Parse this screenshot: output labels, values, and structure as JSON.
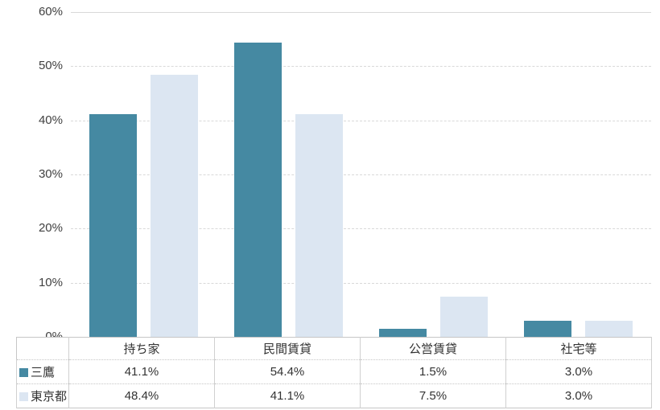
{
  "chart_data": {
    "type": "bar",
    "title": "",
    "categories": [
      "持ち家",
      "民間賃貸",
      "公営賃貸",
      "社宅等"
    ],
    "series": [
      {
        "name": "三鷹",
        "color": "#4589a2",
        "values": [
          41.1,
          54.4,
          1.5,
          3.0
        ]
      },
      {
        "name": "東京都",
        "color": "#dce6f2",
        "values": [
          48.4,
          41.1,
          7.5,
          3.0
        ]
      }
    ],
    "xlabel": "",
    "ylabel": "",
    "ylim": [
      0,
      60
    ],
    "yticks": [
      0,
      10,
      20,
      30,
      40,
      50,
      60
    ],
    "ytick_labels": [
      "0%",
      "10%",
      "20%",
      "30%",
      "40%",
      "50%",
      "60%"
    ],
    "grid": "horizontal-dashed",
    "legend_position": "data-table-left-column"
  },
  "table": {
    "headers": [
      "持ち家",
      "民間賃貸",
      "公営賃貸",
      "社宅等"
    ],
    "rows": [
      {
        "name": "三鷹",
        "swatch_color": "#4589a2",
        "cells": [
          "41.1%",
          "54.4%",
          "1.5%",
          "3.0%"
        ]
      },
      {
        "name": "東京都",
        "swatch_color": "#dce6f2",
        "cells": [
          "48.4%",
          "41.1%",
          "7.5%",
          "3.0%"
        ]
      }
    ]
  },
  "colors": {
    "gridline": "#d9d9d9",
    "table_border": "#c6c6c6",
    "text": "#404040",
    "background": "#ffffff"
  }
}
